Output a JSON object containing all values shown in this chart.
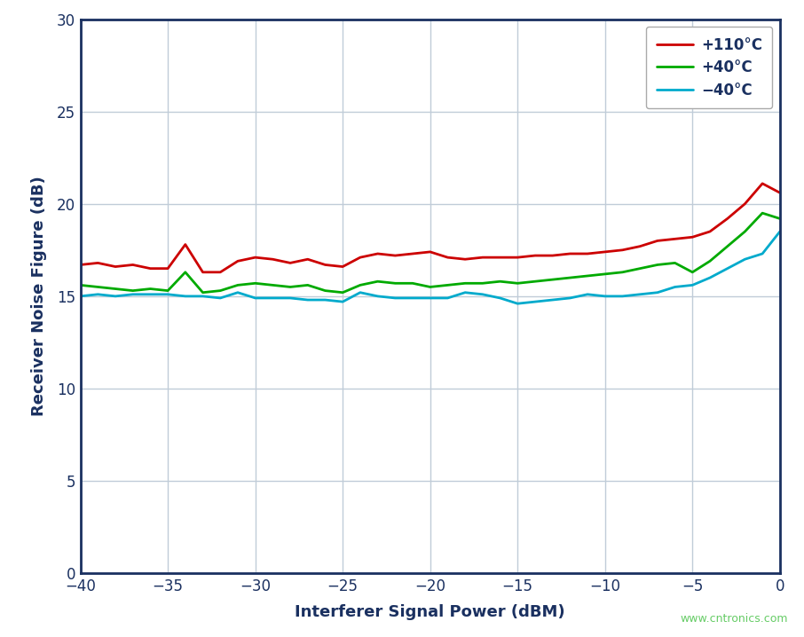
{
  "title": "",
  "xlabel": "Interferer Signal Power (dBM)",
  "ylabel": "Receiver Noise Figure (dB)",
  "xlim": [
    -40,
    0
  ],
  "ylim": [
    0,
    30
  ],
  "xticks": [
    -40,
    -35,
    -30,
    -25,
    -20,
    -15,
    -10,
    -5,
    0
  ],
  "yticks": [
    0,
    5,
    10,
    15,
    20,
    25,
    30
  ],
  "background_color": "#ffffff",
  "plot_bg_color": "#ffffff",
  "grid_color": "#c0ccd8",
  "spine_color": "#1a3060",
  "label_color": "#1a3060",
  "tick_color": "#1a3060",
  "watermark": "www.cntronics.com",
  "watermark_color": "#66cc66",
  "series": [
    {
      "label": "+110°C",
      "color": "#cc0000",
      "x": [
        -40,
        -39,
        -38,
        -37,
        -36,
        -35,
        -34,
        -33,
        -32,
        -31,
        -30,
        -29,
        -28,
        -27,
        -26,
        -25,
        -24,
        -23,
        -22,
        -21,
        -20,
        -19,
        -18,
        -17,
        -16,
        -15,
        -14,
        -13,
        -12,
        -11,
        -10,
        -9,
        -8,
        -7,
        -6,
        -5,
        -4,
        -3,
        -2,
        -1,
        0
      ],
      "y": [
        16.7,
        16.8,
        16.6,
        16.7,
        16.5,
        16.5,
        17.8,
        16.3,
        16.3,
        16.9,
        17.1,
        17.0,
        16.8,
        17.0,
        16.7,
        16.6,
        17.1,
        17.3,
        17.2,
        17.3,
        17.4,
        17.1,
        17.0,
        17.1,
        17.1,
        17.1,
        17.2,
        17.2,
        17.3,
        17.3,
        17.4,
        17.5,
        17.7,
        18.0,
        18.1,
        18.2,
        18.5,
        19.2,
        20.0,
        21.1,
        20.6
      ]
    },
    {
      "label": "+40°C",
      "color": "#00aa00",
      "x": [
        -40,
        -39,
        -38,
        -37,
        -36,
        -35,
        -34,
        -33,
        -32,
        -31,
        -30,
        -29,
        -28,
        -27,
        -26,
        -25,
        -24,
        -23,
        -22,
        -21,
        -20,
        -19,
        -18,
        -17,
        -16,
        -15,
        -14,
        -13,
        -12,
        -11,
        -10,
        -9,
        -8,
        -7,
        -6,
        -5,
        -4,
        -3,
        -2,
        -1,
        0
      ],
      "y": [
        15.6,
        15.5,
        15.4,
        15.3,
        15.4,
        15.3,
        16.3,
        15.2,
        15.3,
        15.6,
        15.7,
        15.6,
        15.5,
        15.6,
        15.3,
        15.2,
        15.6,
        15.8,
        15.7,
        15.7,
        15.5,
        15.6,
        15.7,
        15.7,
        15.8,
        15.7,
        15.8,
        15.9,
        16.0,
        16.1,
        16.2,
        16.3,
        16.5,
        16.7,
        16.8,
        16.3,
        16.9,
        17.7,
        18.5,
        19.5,
        19.2
      ]
    },
    {
      "label": "−40°C",
      "color": "#00aacc",
      "x": [
        -40,
        -39,
        -38,
        -37,
        -36,
        -35,
        -34,
        -33,
        -32,
        -31,
        -30,
        -29,
        -28,
        -27,
        -26,
        -25,
        -24,
        -23,
        -22,
        -21,
        -20,
        -19,
        -18,
        -17,
        -16,
        -15,
        -14,
        -13,
        -12,
        -11,
        -10,
        -9,
        -8,
        -7,
        -6,
        -5,
        -4,
        -3,
        -2,
        -1,
        0
      ],
      "y": [
        15.0,
        15.1,
        15.0,
        15.1,
        15.1,
        15.1,
        15.0,
        15.0,
        14.9,
        15.2,
        14.9,
        14.9,
        14.9,
        14.8,
        14.8,
        14.7,
        15.2,
        15.0,
        14.9,
        14.9,
        14.9,
        14.9,
        15.2,
        15.1,
        14.9,
        14.6,
        14.7,
        14.8,
        14.9,
        15.1,
        15.0,
        15.0,
        15.1,
        15.2,
        15.5,
        15.6,
        16.0,
        16.5,
        17.0,
        17.3,
        18.5
      ]
    }
  ]
}
